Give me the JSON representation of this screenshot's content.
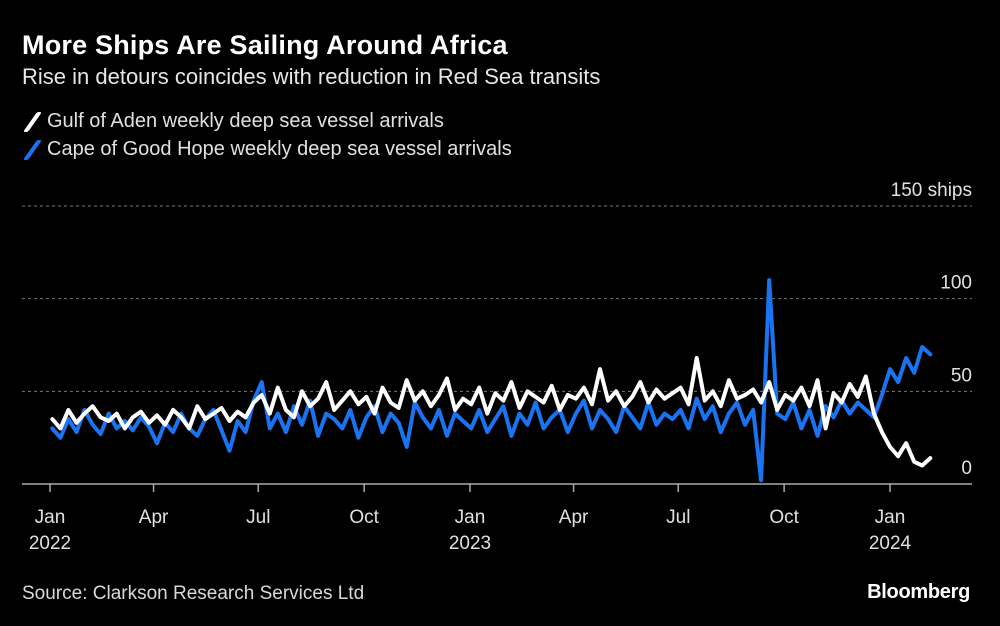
{
  "title": "More Ships Are Sailing Around Africa",
  "subtitle": "Rise in detours coincides with reduction in Red Sea transits",
  "source": "Source: Clarkson Research Services Ltd",
  "logo": "Bloomberg",
  "chart_data": {
    "type": "line",
    "title": "More Ships Are Sailing Around Africa",
    "subtitle": "Rise in detours coincides with reduction in Red Sea transits",
    "start_date": "2022-01-03",
    "frequency": "weekly",
    "ylim": [
      0,
      150
    ],
    "y_unit": "ships",
    "y_ticks": [
      {
        "value": 0,
        "label": "0"
      },
      {
        "value": 50,
        "label": "50"
      },
      {
        "value": 100,
        "label": "100"
      },
      {
        "value": 150,
        "label": "150 ships"
      }
    ],
    "x_ticks": [
      {
        "date": "2022-01-01",
        "label": "Jan",
        "year": "2022"
      },
      {
        "date": "2022-04-01",
        "label": "Apr",
        "year": ""
      },
      {
        "date": "2022-07-01",
        "label": "Jul",
        "year": ""
      },
      {
        "date": "2022-10-01",
        "label": "Oct",
        "year": ""
      },
      {
        "date": "2023-01-01",
        "label": "Jan",
        "year": "2023"
      },
      {
        "date": "2023-04-01",
        "label": "Apr",
        "year": ""
      },
      {
        "date": "2023-07-01",
        "label": "Jul",
        "year": ""
      },
      {
        "date": "2023-10-01",
        "label": "Oct",
        "year": ""
      },
      {
        "date": "2024-01-01",
        "label": "Jan",
        "year": "2024"
      }
    ],
    "grid": true,
    "legend_position": "top-left",
    "series": [
      {
        "name": "Gulf of Aden weekly deep sea vessel arrivals",
        "color": "#ffffff",
        "values": [
          35,
          30,
          40,
          33,
          38,
          42,
          36,
          34,
          38,
          30,
          36,
          39,
          33,
          37,
          32,
          40,
          36,
          30,
          42,
          35,
          38,
          41,
          34,
          39,
          36,
          44,
          48,
          38,
          52,
          40,
          36,
          50,
          42,
          46,
          55,
          40,
          45,
          50,
          43,
          47,
          38,
          52,
          44,
          41,
          56,
          45,
          50,
          42,
          48,
          57,
          40,
          46,
          43,
          52,
          38,
          49,
          45,
          55,
          41,
          50,
          47,
          44,
          53,
          40,
          48,
          46,
          52,
          43,
          62,
          45,
          50,
          42,
          47,
          55,
          44,
          51,
          46,
          49,
          52,
          43,
          68,
          45,
          50,
          42,
          56,
          46,
          48,
          51,
          44,
          55,
          40,
          48,
          45,
          52,
          42,
          56,
          30,
          49,
          44,
          54,
          47,
          58,
          38,
          28,
          20,
          15,
          22,
          12,
          10,
          14
        ]
      },
      {
        "name": "Cape of Good Hope weekly deep sea vessel arrivals",
        "color": "#1a74f2",
        "values": [
          30,
          25,
          35,
          28,
          40,
          32,
          27,
          38,
          30,
          34,
          29,
          36,
          31,
          22,
          33,
          28,
          38,
          30,
          26,
          35,
          40,
          29,
          18,
          34,
          28,
          45,
          55,
          30,
          38,
          28,
          42,
          32,
          45,
          26,
          38,
          35,
          30,
          40,
          25,
          36,
          42,
          28,
          38,
          33,
          20,
          44,
          36,
          30,
          40,
          26,
          38,
          34,
          30,
          40,
          28,
          35,
          42,
          26,
          38,
          32,
          44,
          30,
          36,
          40,
          28,
          38,
          45,
          30,
          40,
          35,
          28,
          42,
          36,
          30,
          44,
          32,
          38,
          35,
          40,
          30,
          46,
          35,
          42,
          28,
          38,
          44,
          32,
          40,
          2,
          110,
          38,
          35,
          44,
          30,
          40,
          26,
          42,
          36,
          45,
          38,
          44,
          40,
          36,
          48,
          62,
          55,
          68,
          60,
          74,
          70
        ]
      }
    ]
  }
}
